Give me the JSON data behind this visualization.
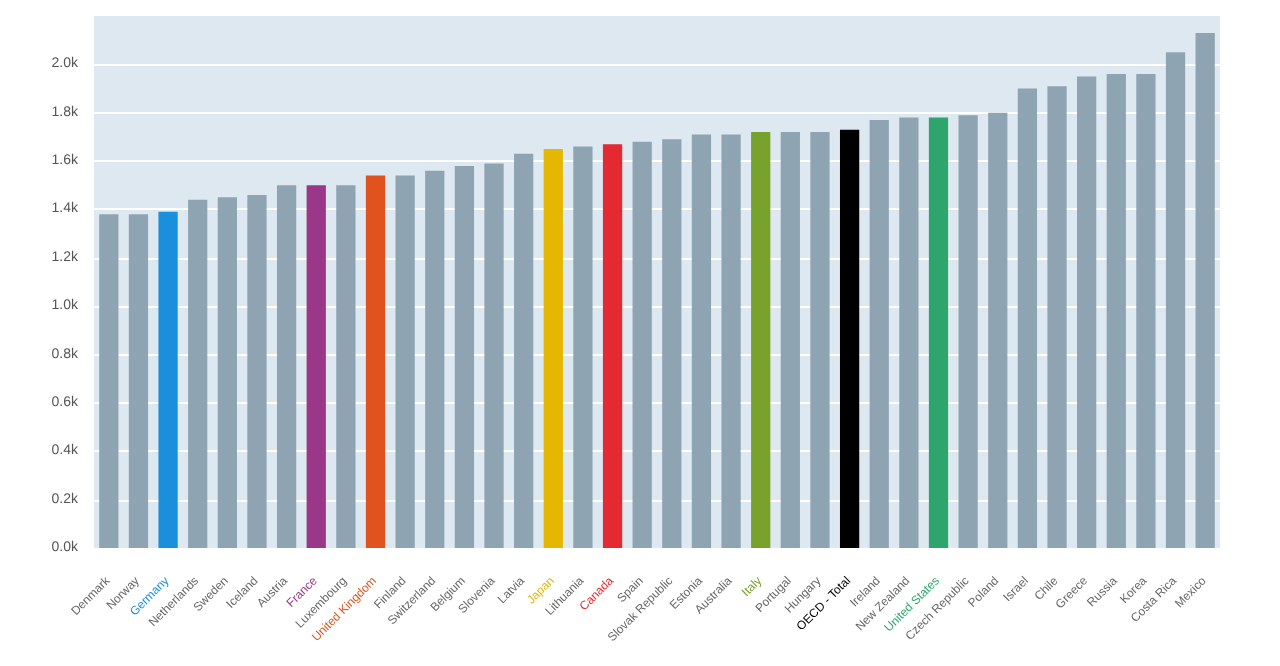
{
  "chart_data": {
    "type": "bar",
    "categories": [
      "Denmark",
      "Norway",
      "Germany",
      "Netherlands",
      "Sweden",
      "Iceland",
      "Austria",
      "France",
      "Luxembourg",
      "United Kingdom",
      "Finland",
      "Switzerland",
      "Belgium",
      "Slovenia",
      "Latvia",
      "Japan",
      "Lithuania",
      "Canada",
      "Spain",
      "Slovak Republic",
      "Estonia",
      "Australia",
      "Italy",
      "Portugal",
      "Hungary",
      "OECD - Total",
      "Ireland",
      "New Zealand",
      "United States",
      "Czech Republic",
      "Poland",
      "Israel",
      "Chile",
      "Greece",
      "Russia",
      "Korea",
      "Costa Rica",
      "Mexico"
    ],
    "values": [
      1380,
      1380,
      1390,
      1440,
      1450,
      1460,
      1500,
      1500,
      1500,
      1540,
      1540,
      1560,
      1580,
      1590,
      1630,
      1650,
      1660,
      1670,
      1680,
      1690,
      1710,
      1710,
      1720,
      1720,
      1720,
      1730,
      1770,
      1780,
      1780,
      1790,
      1800,
      1900,
      1910,
      1950,
      1960,
      1960,
      2050,
      2130
    ],
    "colors": [
      "#8fa4b2",
      "#8fa4b2",
      "#1a8fdc",
      "#8fa4b2",
      "#8fa4b2",
      "#8fa4b2",
      "#8fa4b2",
      "#9b3788",
      "#8fa4b2",
      "#e0531f",
      "#8fa4b2",
      "#8fa4b2",
      "#8fa4b2",
      "#8fa4b2",
      "#8fa4b2",
      "#e5b700",
      "#8fa4b2",
      "#e42a30",
      "#8fa4b2",
      "#8fa4b2",
      "#8fa4b2",
      "#8fa4b2",
      "#77a22c",
      "#8fa4b2",
      "#8fa4b2",
      "#000000",
      "#8fa4b2",
      "#8fa4b2",
      "#2ea56c",
      "#8fa4b2",
      "#8fa4b2",
      "#8fa4b2",
      "#8fa4b2",
      "#8fa4b2",
      "#8fa4b2",
      "#8fa4b2",
      "#8fa4b2",
      "#8fa4b2"
    ],
    "ylim": [
      0,
      2200
    ],
    "yticks": [
      {
        "value": 0,
        "label": "0.0k"
      },
      {
        "value": 200,
        "label": "0.2k"
      },
      {
        "value": 400,
        "label": "0.4k"
      },
      {
        "value": 600,
        "label": "0.6k"
      },
      {
        "value": 800,
        "label": "0.8k"
      },
      {
        "value": 1000,
        "label": "1.0k"
      },
      {
        "value": 1200,
        "label": "1.2k"
      },
      {
        "value": 1400,
        "label": "1.4k"
      },
      {
        "value": 1600,
        "label": "1.6k"
      },
      {
        "value": 1800,
        "label": "1.8k"
      },
      {
        "value": 2000,
        "label": "2.0k"
      }
    ],
    "grid": "y"
  }
}
